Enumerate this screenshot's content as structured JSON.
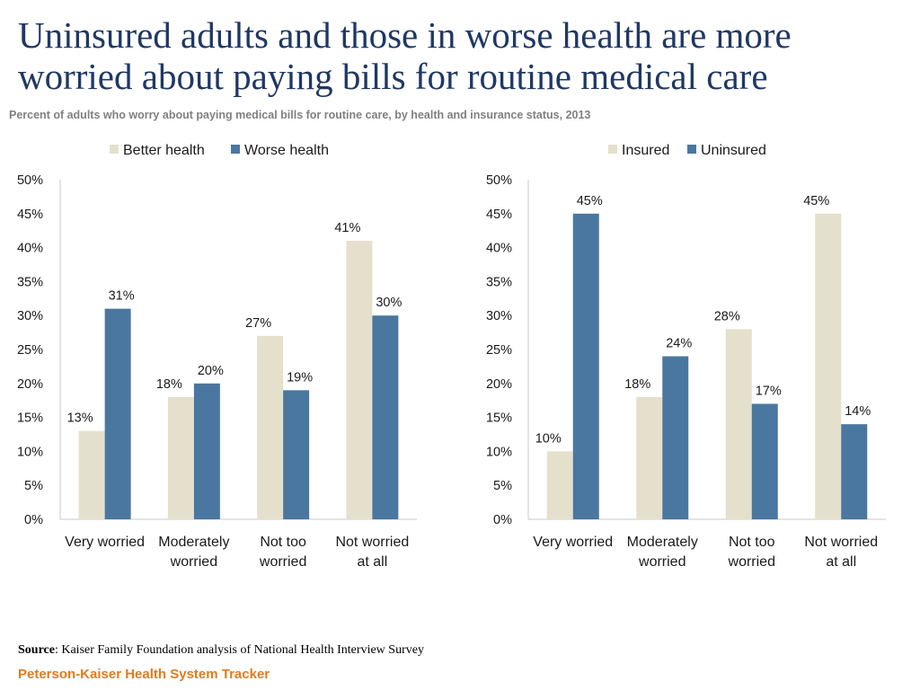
{
  "header": {
    "title": "Uninsured adults and those in worse health are more worried about paying bills for routine medical care",
    "subtitle": "Percent of adults who worry about paying medical bills for routine care, by health and insurance status, 2013"
  },
  "footer": {
    "source_label": "Source",
    "source_text": ": Kaiser Family Foundation analysis of National Health Interview Survey",
    "tracker": "Peterson-Kaiser Health System Tracker"
  },
  "colors": {
    "series_light": "#e5e0cc",
    "series_dark": "#4a77a0",
    "axis": "#c8c8c8"
  },
  "chart_data": [
    {
      "type": "bar",
      "title": "",
      "categories": [
        [
          "Very worried"
        ],
        [
          "Moderately",
          "worried"
        ],
        [
          "Not too",
          "worried"
        ],
        [
          "Not worried",
          "at all"
        ]
      ],
      "series": [
        {
          "name": "Better health",
          "values": [
            13,
            18,
            27,
            41
          ],
          "labels": [
            "13%",
            "18%",
            "27%",
            "41%"
          ]
        },
        {
          "name": "Worse health",
          "values": [
            31,
            20,
            19,
            30
          ],
          "labels": [
            "31%",
            "20%",
            "19%",
            "30%"
          ]
        }
      ],
      "yticks": [
        "0%",
        "5%",
        "10%",
        "15%",
        "20%",
        "25%",
        "30%",
        "35%",
        "40%",
        "45%",
        "50%"
      ],
      "ylim": [
        0,
        50
      ],
      "xlabel": "",
      "ylabel": "",
      "grid": false,
      "legend": "top"
    },
    {
      "type": "bar",
      "title": "",
      "categories": [
        [
          "Very worried"
        ],
        [
          "Moderately",
          "worried"
        ],
        [
          "Not too",
          "worried"
        ],
        [
          "Not worried",
          "at all"
        ]
      ],
      "series": [
        {
          "name": "Insured",
          "values": [
            10,
            18,
            28,
            45
          ],
          "labels": [
            "10%",
            "18%",
            "28%",
            "45%"
          ]
        },
        {
          "name": "Uninsured",
          "values": [
            45,
            24,
            17,
            14
          ],
          "labels": [
            "45%",
            "24%",
            "17%",
            "14%"
          ]
        }
      ],
      "yticks": [
        "0%",
        "5%",
        "10%",
        "15%",
        "20%",
        "25%",
        "30%",
        "35%",
        "40%",
        "45%",
        "50%"
      ],
      "ylim": [
        0,
        50
      ],
      "xlabel": "",
      "ylabel": "",
      "grid": false,
      "legend": "top"
    }
  ]
}
